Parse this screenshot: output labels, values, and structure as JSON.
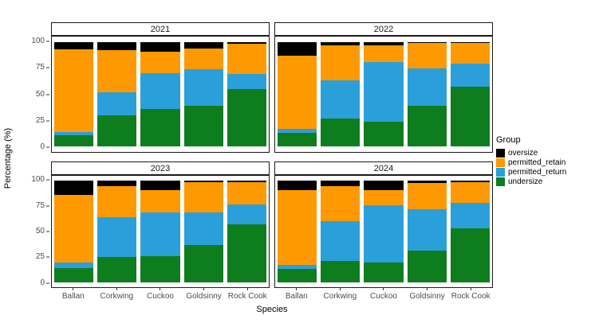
{
  "chart_data": {
    "type": "bar",
    "stacked": true,
    "normalized": "percent",
    "title": "",
    "xlabel": "Species",
    "ylabel": "Percentage (%)",
    "ylim": [
      0,
      100
    ],
    "y_ticks": [
      0,
      25,
      50,
      75,
      100
    ],
    "grid": false,
    "legend_title": "Group",
    "legend_position": "right",
    "categories": [
      "Ballan",
      "Corkwing",
      "Cuckoo",
      "Goldsinny",
      "Rock Cook"
    ],
    "groups": [
      {
        "name": "oversize",
        "color": "#000000"
      },
      {
        "name": "permitted_retain",
        "color": "#FF9901"
      },
      {
        "name": "permitted_return",
        "color": "#2B9FD9"
      },
      {
        "name": "undersize",
        "color": "#0E7D1E"
      }
    ],
    "stack_order_bottom_to_top": [
      "undersize",
      "permitted_return",
      "permitted_retain",
      "oversize"
    ],
    "facets": [
      {
        "year": "2021",
        "values": {
          "undersize": [
            11,
            30,
            36,
            39,
            55
          ],
          "permitted_return": [
            3,
            22,
            34,
            35,
            14
          ],
          "permitted_retain": [
            79,
            40,
            21,
            20,
            29
          ],
          "oversize": [
            7,
            8,
            9,
            6,
            2
          ]
        }
      },
      {
        "year": "2022",
        "values": {
          "undersize": [
            13,
            27,
            24,
            39,
            57
          ],
          "permitted_return": [
            4,
            36,
            57,
            36,
            22
          ],
          "permitted_retain": [
            70,
            34,
            16,
            24,
            20
          ],
          "oversize": [
            13,
            3,
            3,
            1,
            1
          ]
        }
      },
      {
        "year": "2023",
        "values": {
          "undersize": [
            14,
            25,
            26,
            37,
            57
          ],
          "permitted_return": [
            5,
            39,
            43,
            32,
            20
          ],
          "permitted_retain": [
            67,
            31,
            22,
            30,
            22
          ],
          "oversize": [
            14,
            5,
            9,
            1,
            1
          ]
        }
      },
      {
        "year": "2024",
        "values": {
          "undersize": [
            13,
            21,
            19,
            31,
            53
          ],
          "permitted_return": [
            4,
            39,
            57,
            41,
            25
          ],
          "permitted_retain": [
            74,
            35,
            15,
            26,
            21
          ],
          "oversize": [
            9,
            5,
            9,
            2,
            1
          ]
        }
      }
    ]
  }
}
